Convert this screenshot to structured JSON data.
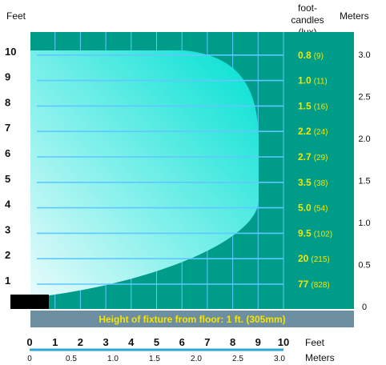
{
  "header": {
    "left_unit": "Feet",
    "fc_label_line1": "foot-candles",
    "fc_label_line2": "(lux)",
    "right_unit": "Meters"
  },
  "left_axis_ticks": [
    "10",
    "9",
    "8",
    "7",
    "6",
    "5",
    "4",
    "3",
    "2",
    "1"
  ],
  "right_axis_ticks": [
    "3.0",
    "2.5",
    "2.0",
    "1.5",
    "1.0",
    "0.5",
    "0"
  ],
  "illuminance": [
    {
      "height_ft": 10,
      "fc": "0.8",
      "lux": "(9)"
    },
    {
      "height_ft": 9,
      "fc": "1.0",
      "lux": "(11)"
    },
    {
      "height_ft": 8,
      "fc": "1.5",
      "lux": "(16)"
    },
    {
      "height_ft": 7,
      "fc": "2.2",
      "lux": "(24)"
    },
    {
      "height_ft": 6,
      "fc": "2.7",
      "lux": "(29)"
    },
    {
      "height_ft": 5,
      "fc": "3.5",
      "lux": "(38)"
    },
    {
      "height_ft": 4,
      "fc": "5.0",
      "lux": "(54)"
    },
    {
      "height_ft": 3,
      "fc": "9.5",
      "lux": "(102)"
    },
    {
      "height_ft": 2,
      "fc": "20",
      "lux": "(215)"
    },
    {
      "height_ft": 1,
      "fc": "77",
      "lux": "(828)"
    }
  ],
  "caption": "Height of fixture from floor: 1 ft. (305mm)",
  "bottom_feet_ticks": [
    "0",
    "1",
    "2",
    "3",
    "4",
    "5",
    "6",
    "7",
    "8",
    "9",
    "10"
  ],
  "bottom_feet_label": "Feet",
  "bottom_meter_ticks": [
    "0",
    "0.5",
    "1.0",
    "1.5",
    "2.0",
    "2.5",
    "3.0"
  ],
  "bottom_meter_label": "Meters",
  "colors": {
    "panel": "#009c8a",
    "beam": "#00e0d2",
    "grid": "#5ec8ff",
    "value_text": "#f3e600",
    "caption_bar": "#6e8fa2",
    "axis_line": "#29a8d8"
  }
}
